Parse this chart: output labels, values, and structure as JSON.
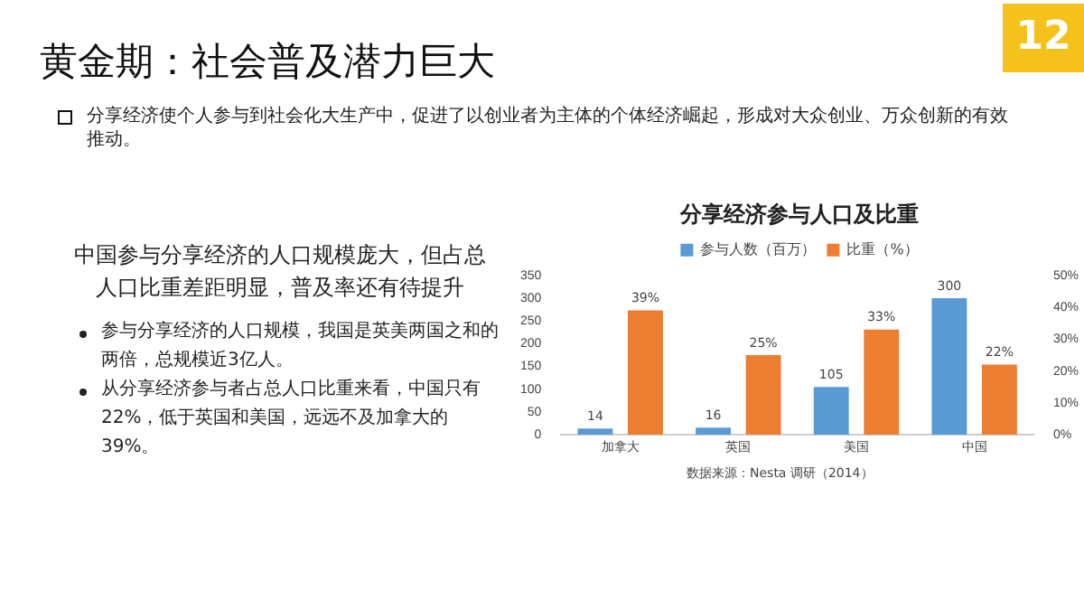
{
  "chart_data": {
    "type": "bar",
    "title": "分享经济参与人口及比重",
    "categories": [
      "加拿大",
      "英国",
      "美国",
      "中国"
    ],
    "series": [
      {
        "name": "参与人数（百万）",
        "color": "#5b9bd5",
        "values": [
          14,
          16,
          105,
          300
        ],
        "value_labels": [
          "14",
          "16",
          "105",
          "300"
        ]
      },
      {
        "name": "比重（%）",
        "color": "#ed7d31",
        "values": [
          39,
          25,
          33,
          22
        ],
        "axis": "y2",
        "value_labels": [
          "39%",
          "25%",
          "33%",
          "22%"
        ]
      }
    ],
    "ylim": [
      0,
      350
    ],
    "yticks": [
      0,
      50,
      100,
      150,
      200,
      250,
      300,
      350
    ],
    "y2lim": [
      0,
      50
    ],
    "y2ticks": [
      {
        "value": 0,
        "label": "0%"
      },
      {
        "value": 10,
        "label": "10%"
      },
      {
        "value": 20,
        "label": "20%"
      },
      {
        "value": 30,
        "label": "30%"
      },
      {
        "value": 40,
        "label": "40%"
      },
      {
        "value": 50,
        "label": "50%"
      }
    ],
    "grid": false,
    "legend": "top",
    "annotations": [
      "黄金期：社会普及潜力巨大",
      "分享经济使个人参与到社会化大生产中，促进了以创业者为主体的个体经济崛起，形成对大众创业、万众创新的有效推动。",
      "中国参与分享经济的人口规模庞大，但占总人口比重差距明显，普及率还有待提升",
      "参与分享经济的人口规模，我国是英美两国之和的两倍，总规模近3亿人。",
      "从分享经济参与者占总人口比重来看，中国只有22%，低于英国和美国，远远不及加拿大的39%。",
      "数据来源：Nesta 调研（2014）",
      "12"
    ]
  }
}
